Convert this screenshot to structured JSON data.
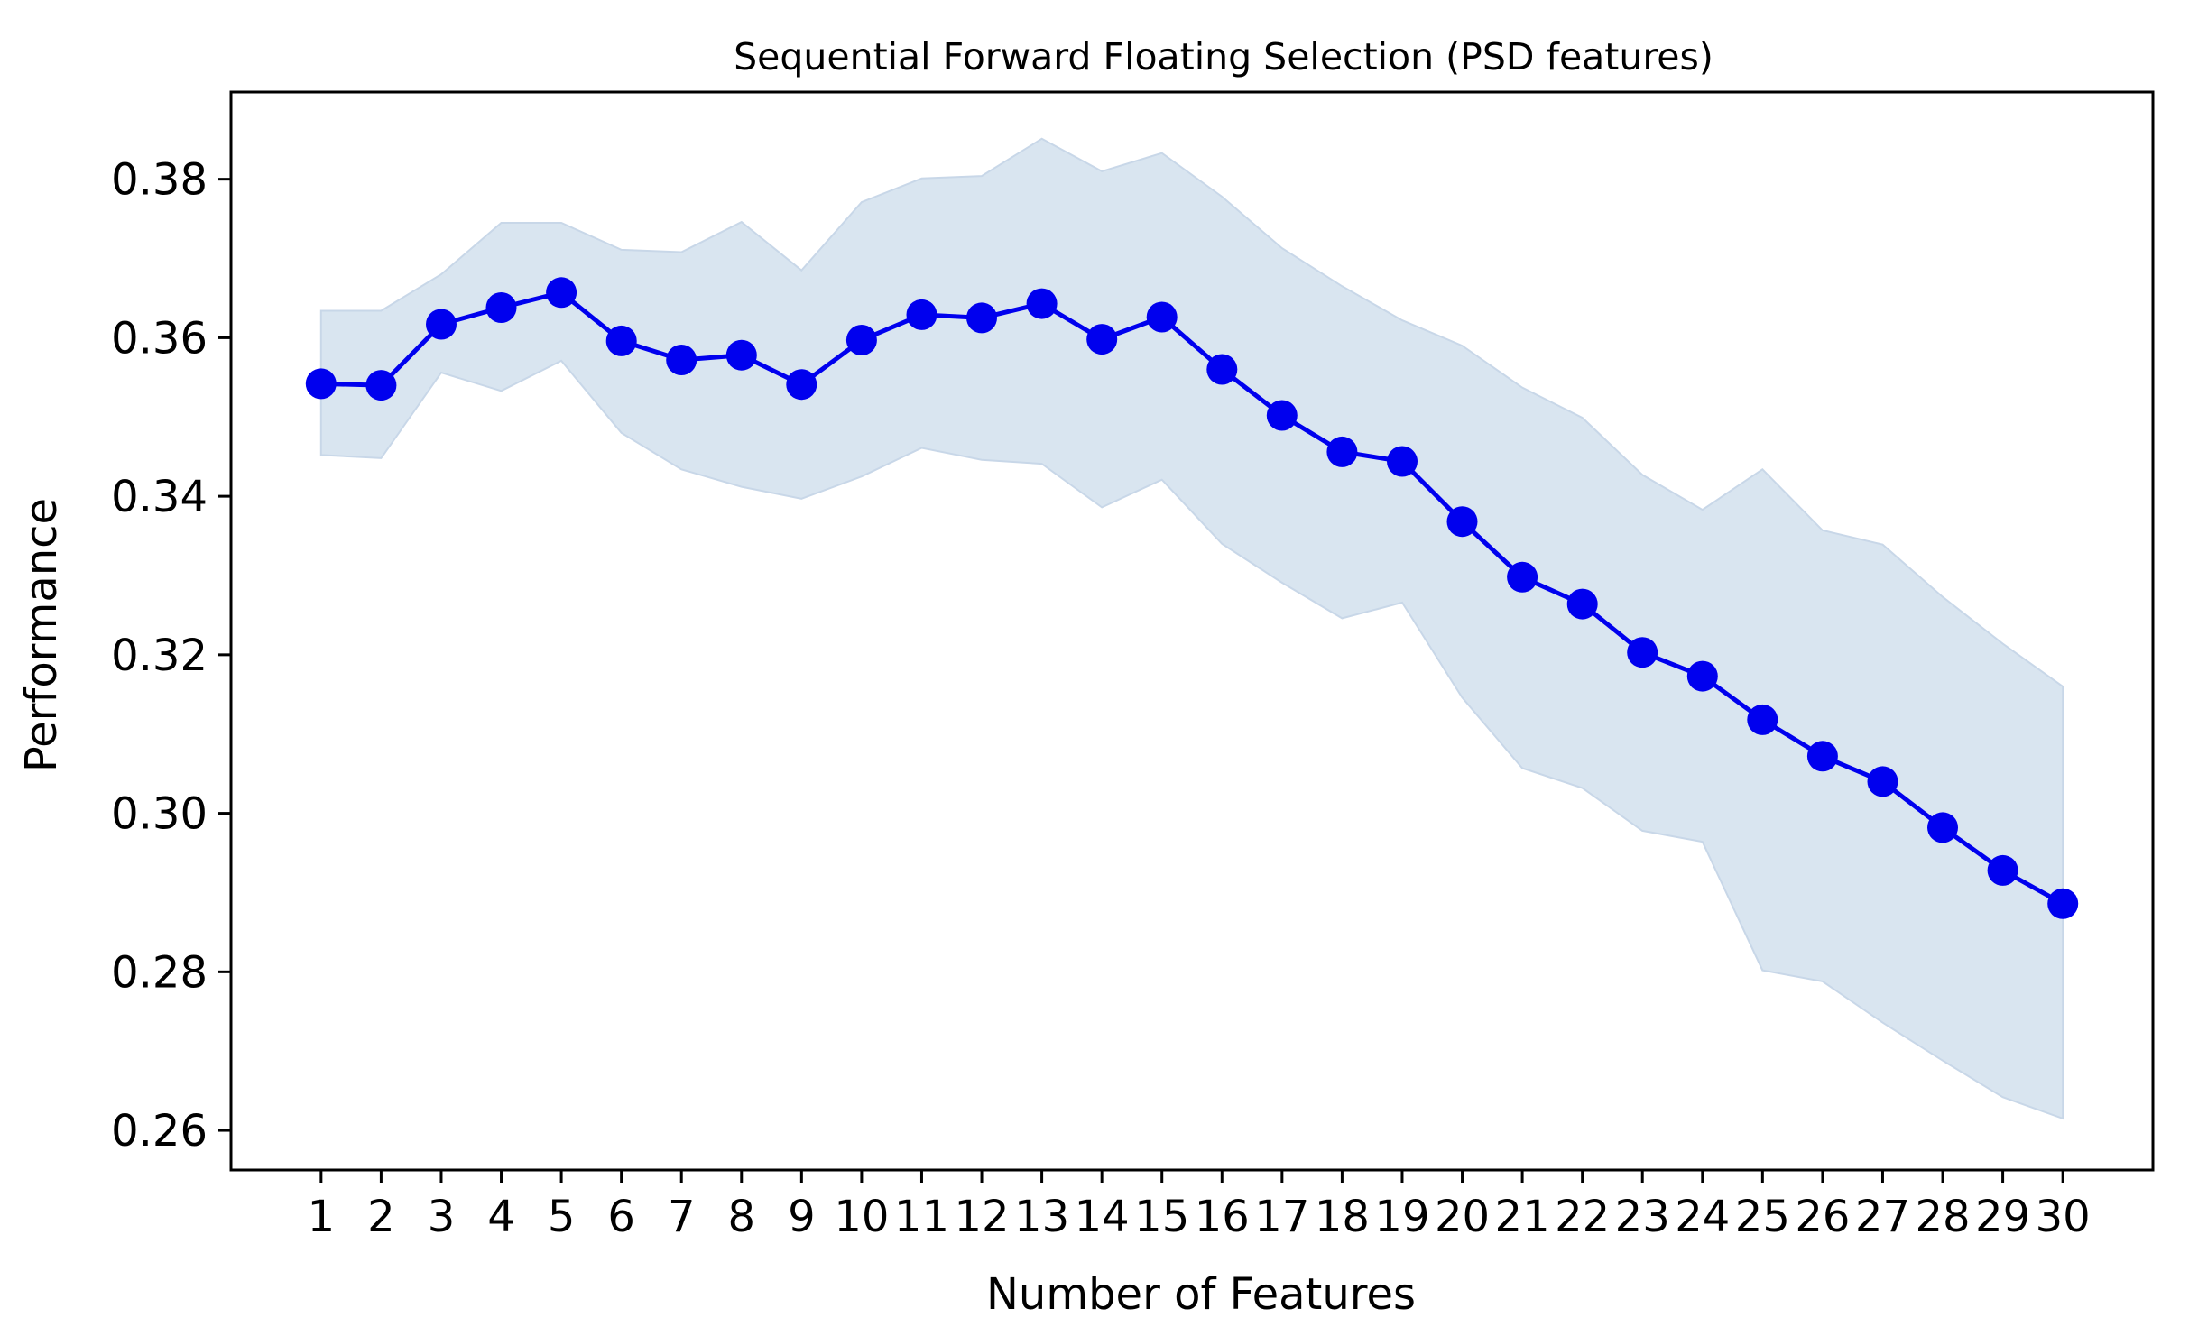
{
  "chart_data": {
    "type": "line",
    "title": "Sequential Forward Floating Selection (PSD features)",
    "xlabel": "Number of Features",
    "ylabel": "Performance",
    "ylim": [
      0.255,
      0.391
    ],
    "xlim": [
      -0.5,
      31.5
    ],
    "grid": false,
    "x": [
      1,
      2,
      3,
      4,
      5,
      6,
      7,
      8,
      9,
      10,
      11,
      12,
      13,
      14,
      15,
      16,
      17,
      18,
      19,
      20,
      21,
      22,
      23,
      24,
      25,
      26,
      27,
      28,
      29,
      30
    ],
    "x_tick_labels": [
      "1",
      "2",
      "3",
      "4",
      "5",
      "6",
      "7",
      "8",
      "9",
      "10",
      "11",
      "12",
      "13",
      "14",
      "15",
      "16",
      "17",
      "18",
      "19",
      "20",
      "21",
      "22",
      "23",
      "24",
      "25",
      "26",
      "27",
      "28",
      "29",
      "30"
    ],
    "y_ticks": [
      0.26,
      0.28,
      0.3,
      0.32,
      0.34,
      0.36,
      0.38
    ],
    "y_tick_labels": [
      "0.26",
      "0.28",
      "0.30",
      "0.32",
      "0.34",
      "0.36",
      "0.38"
    ],
    "series": [
      {
        "name": "Performance",
        "values": [
          0.3542,
          0.354,
          0.3617,
          0.3638,
          0.3657,
          0.3596,
          0.3572,
          0.3578,
          0.3541,
          0.3597,
          0.3629,
          0.3625,
          0.3643,
          0.3598,
          0.3626,
          0.356,
          0.3502,
          0.3456,
          0.3444,
          0.3368,
          0.3298,
          0.3264,
          0.3203,
          0.3173,
          0.3118,
          0.3072,
          0.304,
          0.2982,
          0.2928,
          0.2886
        ],
        "lower": [
          0.3452,
          0.3448,
          0.3556,
          0.3533,
          0.3571,
          0.348,
          0.3434,
          0.3412,
          0.3397,
          0.3425,
          0.3461,
          0.3446,
          0.3441,
          0.3386,
          0.3421,
          0.334,
          0.3291,
          0.3246,
          0.3266,
          0.3146,
          0.3057,
          0.3032,
          0.2978,
          0.2964,
          0.2802,
          0.2788,
          0.2736,
          0.2688,
          0.2642,
          0.2615
        ],
        "upper": [
          0.3634,
          0.3634,
          0.368,
          0.3745,
          0.3745,
          0.3711,
          0.3708,
          0.3746,
          0.3685,
          0.3771,
          0.3801,
          0.3804,
          0.3851,
          0.381,
          0.3833,
          0.3778,
          0.3713,
          0.3665,
          0.3622,
          0.359,
          0.3537,
          0.3499,
          0.3427,
          0.3383,
          0.3434,
          0.3357,
          0.3339,
          0.3273,
          0.3214,
          0.316
        ],
        "color": "#0000ee",
        "band_color": "#d9e5f0",
        "band_edge_color": "#c8d7e8",
        "marker": "circle"
      }
    ]
  }
}
